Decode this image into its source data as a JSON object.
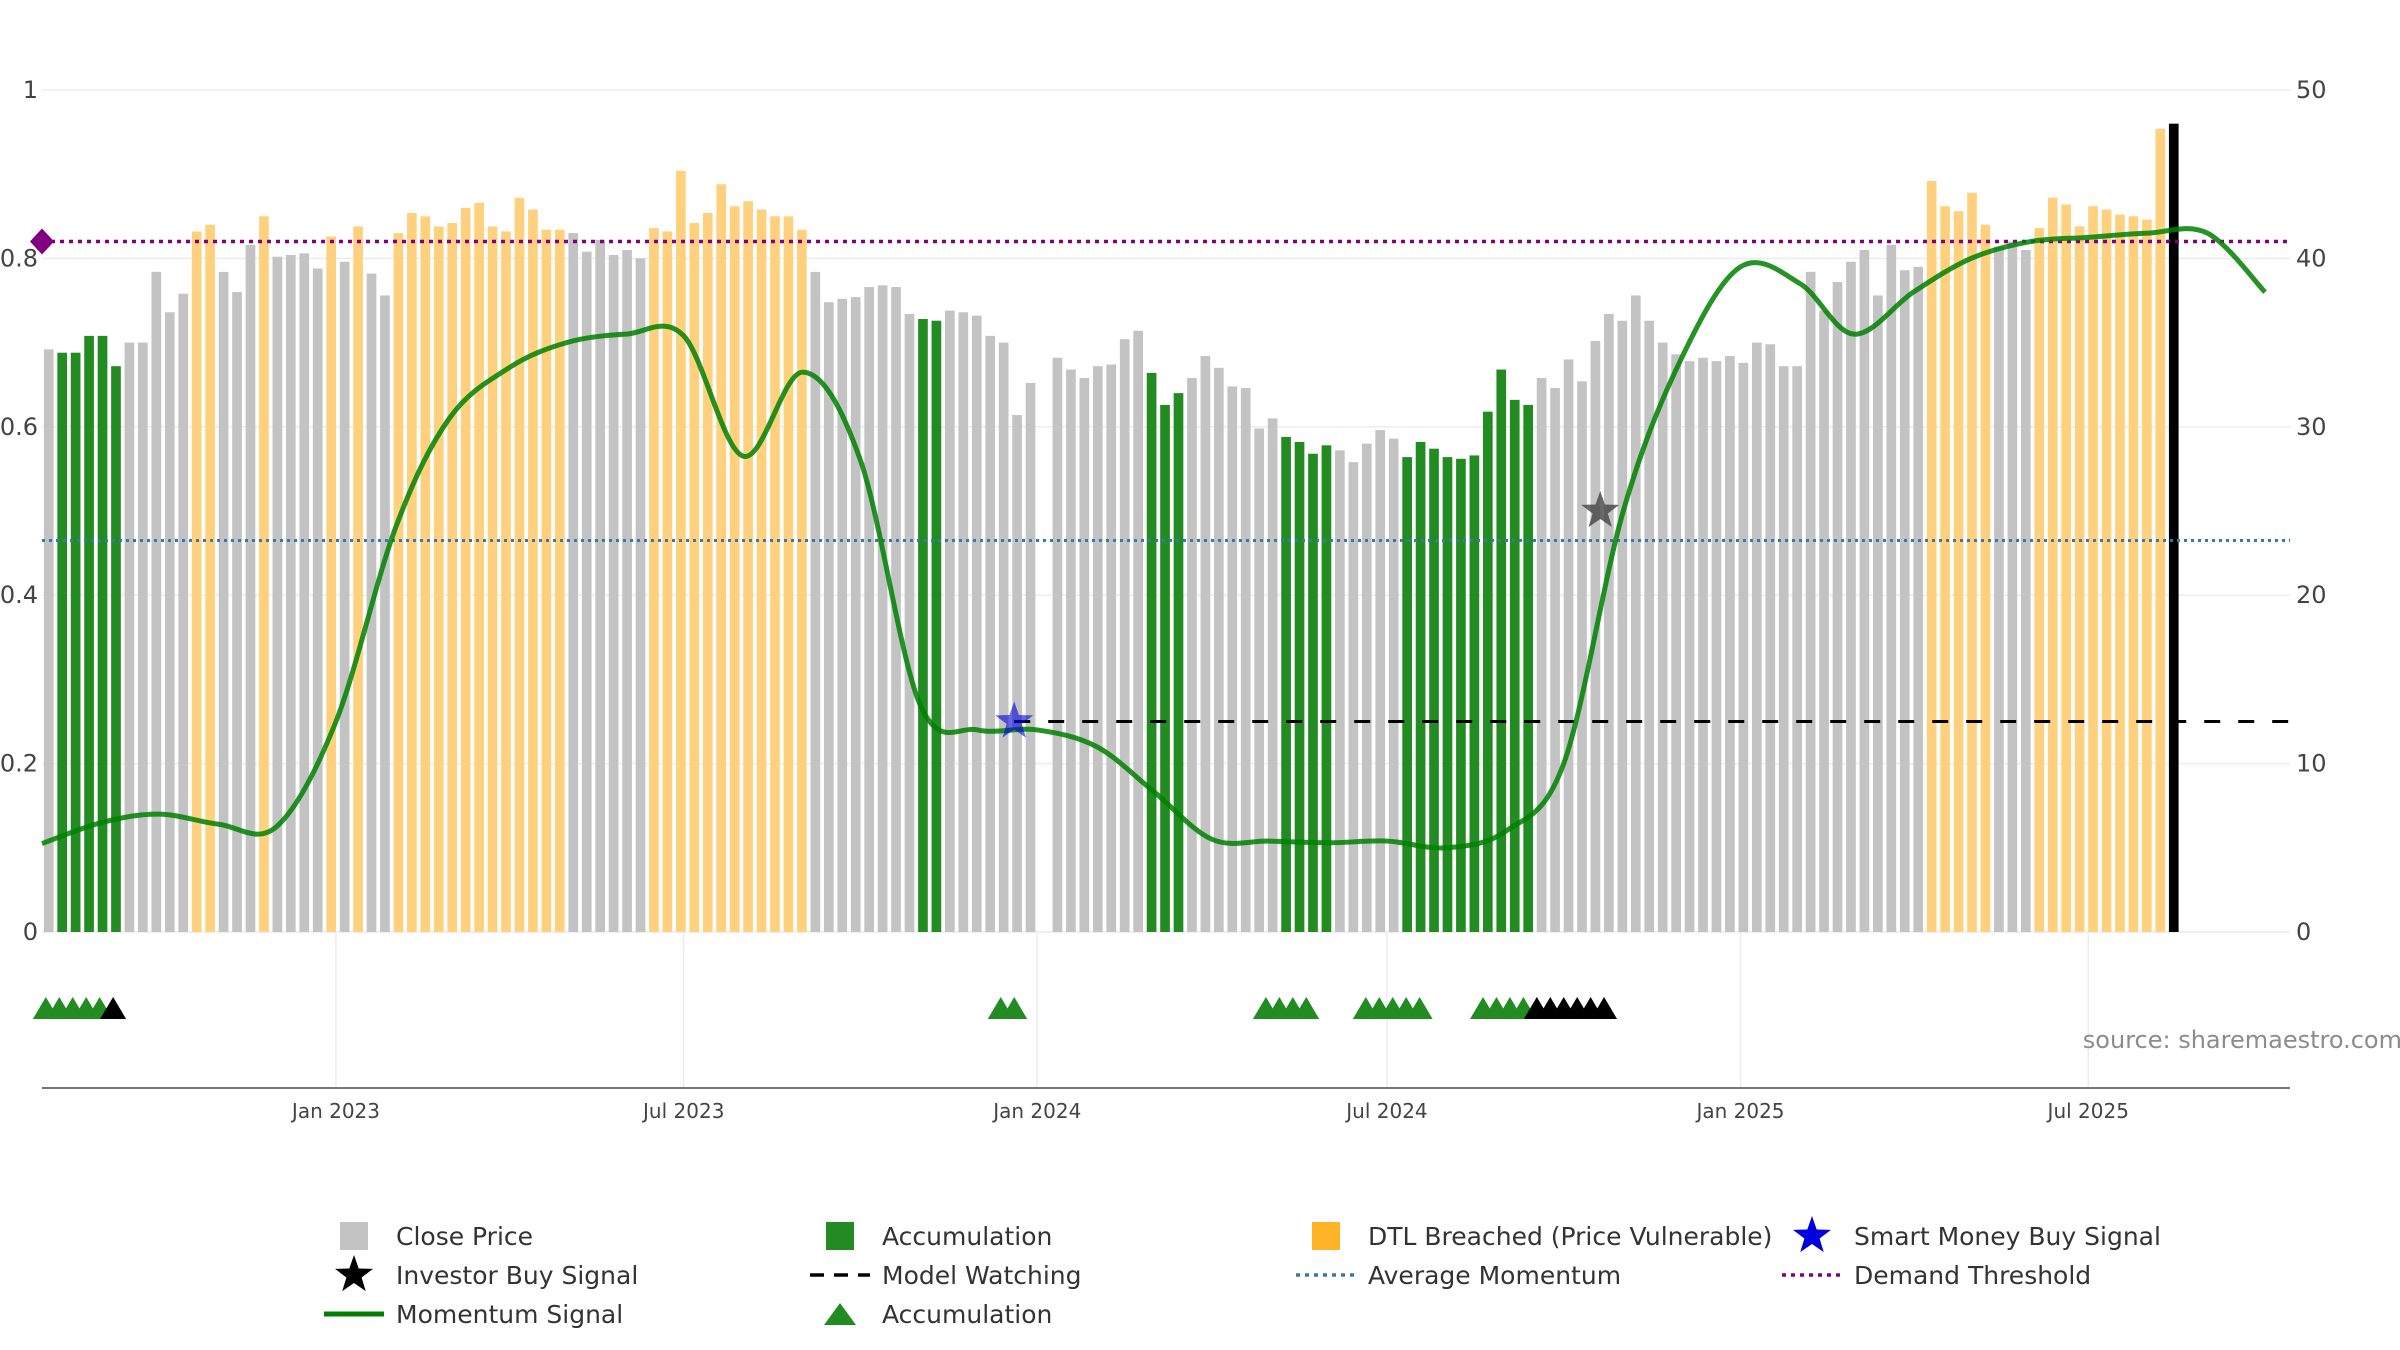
{
  "chart_data": {
    "type": "bar",
    "title": "",
    "source_label": "source: sharemaestro.com",
    "y_left": {
      "ticks": [
        0,
        0.2,
        0.4,
        0.6,
        0.8,
        1
      ],
      "tick_labels": [
        "0",
        "0.2",
        "0.4",
        "0.6",
        "0.8",
        "1"
      ],
      "range": [
        0,
        1
      ]
    },
    "y_right": {
      "ticks": [
        0,
        10,
        20,
        30,
        40,
        50
      ],
      "tick_labels": [
        "0",
        "10",
        "20",
        "30",
        "40",
        "50"
      ],
      "range": [
        0,
        50
      ]
    },
    "x": {
      "start": "2022-08-01",
      "end": "2025-10-14",
      "ticks": [
        "2023-01-01",
        "2023-07-01",
        "2024-01-01",
        "2024-07-01",
        "2025-01-01",
        "2025-07-01"
      ],
      "tick_labels": [
        "Jan 2023",
        "Jul 2023",
        "Jan 2024",
        "Jul 2024",
        "Jan 2025",
        "Jul 2025"
      ]
    },
    "bar_week_start": "2022-08-01",
    "bar_interval_days": 7,
    "bar_values": [
      34.6,
      34.4,
      34.4,
      35.4,
      35.4,
      33.6,
      35.0,
      35.0,
      39.2,
      36.8,
      37.9,
      41.6,
      42.0,
      39.2,
      38.0,
      40.8,
      42.5,
      40.1,
      40.2,
      40.3,
      39.4,
      41.3,
      39.8,
      41.9,
      39.1,
      37.8,
      41.5,
      42.7,
      42.5,
      41.9,
      42.1,
      43.0,
      43.3,
      41.9,
      41.6,
      43.6,
      42.9,
      41.7,
      41.7,
      41.5,
      40.4,
      41.1,
      40.2,
      40.5,
      40.0,
      41.8,
      41.6,
      45.2,
      42.1,
      42.7,
      44.4,
      43.1,
      43.4,
      42.9,
      42.5,
      42.5,
      41.7,
      39.2,
      37.4,
      37.6,
      37.7,
      38.3,
      38.4,
      38.3,
      36.7,
      36.4,
      36.3,
      36.9,
      36.8,
      36.6,
      35.4,
      35.0,
      30.7,
      32.6,
      0,
      34.1,
      33.4,
      32.9,
      33.6,
      33.7,
      35.2,
      35.7,
      33.2,
      31.3,
      32.0,
      32.9,
      34.2,
      33.5,
      32.4,
      32.3,
      29.9,
      30.5,
      29.4,
      29.1,
      28.4,
      28.9,
      28.6,
      27.9,
      29.0,
      29.8,
      29.3,
      28.2,
      29.1,
      28.7,
      28.2,
      28.1,
      28.3,
      30.9,
      33.4,
      31.6,
      31.3,
      32.9,
      32.3,
      34.0,
      32.7,
      35.1,
      36.7,
      36.3,
      37.8,
      36.3,
      35.0,
      34.3,
      33.9,
      34.1,
      33.9,
      34.2,
      33.8,
      35.0,
      34.9,
      33.6,
      33.6,
      39.2,
      36.9,
      38.6,
      39.8,
      40.5,
      37.8,
      40.8,
      39.3,
      39.5,
      44.6,
      43.1,
      42.8,
      43.9,
      42.0,
      40.7,
      41.0,
      40.5,
      41.8,
      43.6,
      43.2,
      41.9,
      43.1,
      42.9,
      42.6,
      42.5,
      42.3,
      47.7,
      48.0
    ],
    "bar_categories": [
      "C",
      "A",
      "A",
      "A",
      "A",
      "A",
      "C",
      "C",
      "C",
      "C",
      "C",
      "D",
      "D",
      "C",
      "C",
      "C",
      "D",
      "C",
      "C",
      "C",
      "C",
      "D",
      "C",
      "D",
      "C",
      "C",
      "D",
      "D",
      "D",
      "D",
      "D",
      "D",
      "D",
      "D",
      "D",
      "D",
      "D",
      "D",
      "D",
      "C",
      "C",
      "C",
      "C",
      "C",
      "C",
      "D",
      "D",
      "D",
      "D",
      "D",
      "D",
      "D",
      "D",
      "D",
      "D",
      "D",
      "D",
      "C",
      "C",
      "C",
      "C",
      "C",
      "C",
      "C",
      "C",
      "A",
      "A",
      "C",
      "C",
      "C",
      "C",
      "C",
      "C",
      "C",
      "C",
      "C",
      "C",
      "C",
      "C",
      "C",
      "C",
      "C",
      "A",
      "A",
      "A",
      "C",
      "C",
      "C",
      "C",
      "C",
      "C",
      "C",
      "A",
      "A",
      "A",
      "A",
      "C",
      "C",
      "C",
      "C",
      "C",
      "A",
      "A",
      "A",
      "A",
      "A",
      "A",
      "A",
      "A",
      "A",
      "A",
      "C",
      "C",
      "C",
      "C",
      "C",
      "C",
      "C",
      "C",
      "C",
      "C",
      "C",
      "C",
      "C",
      "C",
      "C",
      "C",
      "C",
      "C",
      "C",
      "C",
      "C",
      "C",
      "C",
      "C",
      "C",
      "C",
      "C",
      "C",
      "C",
      "D",
      "D",
      "D",
      "D",
      "D",
      "C",
      "C",
      "C",
      "D",
      "D",
      "D",
      "D",
      "D",
      "D",
      "D",
      "D",
      "D",
      "D"
    ],
    "momentum_signal": {
      "x": [
        "2022-08-01",
        "2022-09-01",
        "2022-10-01",
        "2022-11-01",
        "2022-12-01",
        "2023-01-01",
        "2023-02-01",
        "2023-03-01",
        "2023-04-01",
        "2023-05-01",
        "2023-06-01",
        "2023-07-01",
        "2023-08-01",
        "2023-09-01",
        "2023-10-01",
        "2023-11-01",
        "2023-12-01",
        "2024-01-01",
        "2024-02-01",
        "2024-03-01",
        "2024-04-01",
        "2024-05-01",
        "2024-06-01",
        "2024-07-01",
        "2024-08-01",
        "2024-09-01",
        "2024-10-01",
        "2024-11-01",
        "2024-12-01",
        "2025-01-01",
        "2025-02-01",
        "2025-03-01",
        "2025-04-01",
        "2025-05-01",
        "2025-06-01",
        "2025-07-01",
        "2025-08-01",
        "2025-09-01",
        "2025-10-01"
      ],
      "y": [
        0.105,
        0.13,
        0.14,
        0.128,
        0.125,
        0.25,
        0.48,
        0.61,
        0.67,
        0.7,
        0.71,
        0.708,
        0.565,
        0.665,
        0.56,
        0.27,
        0.24,
        0.24,
        0.22,
        0.168,
        0.11,
        0.108,
        0.106,
        0.108,
        0.1,
        0.12,
        0.2,
        0.5,
        0.68,
        0.79,
        0.77,
        0.71,
        0.76,
        0.8,
        0.82,
        0.825,
        0.83,
        0.83,
        0.76
      ]
    },
    "average_momentum": 0.465,
    "demand_threshold": 0.82,
    "model_watching": {
      "level": 0.25,
      "from": "2023-12-20",
      "to": "2025-10-14"
    },
    "smart_money_buy_signal": {
      "x": "2023-12-20",
      "y": 0.25
    },
    "investor_buy_signal": {
      "x": "2024-10-20",
      "y": 0.5
    },
    "accumulation_markers": {
      "green": [
        "2022-08-03",
        "2022-08-10",
        "2022-08-17",
        "2022-08-24",
        "2022-08-31",
        "2023-12-13",
        "2023-12-20",
        "2024-04-29",
        "2024-05-06",
        "2024-05-13",
        "2024-05-20",
        "2024-06-20",
        "2024-06-27",
        "2024-07-04",
        "2024-07-11",
        "2024-07-18",
        "2024-08-20",
        "2024-08-27",
        "2024-09-03",
        "2024-09-10"
      ],
      "black": [
        "2022-09-07",
        "2024-09-17",
        "2024-09-24",
        "2024-10-01",
        "2024-10-08",
        "2024-10-15",
        "2024-10-22"
      ]
    },
    "colors": {
      "close_price": "#c3c3c3",
      "accumulation": "#228b22",
      "dtl_breached": "#ffd17f",
      "momentum": "#008000",
      "average_momentum": "#3b78a8",
      "demand_threshold": "#800080",
      "smart_money": "#0000dd",
      "investor": "#000000",
      "model_watching": "#000000"
    },
    "legend": [
      {
        "label": "Close Price",
        "symbol": "square",
        "color": "#c3c3c3"
      },
      {
        "label": "Accumulation",
        "symbol": "square",
        "color": "#228b22"
      },
      {
        "label": "DTL Breached (Price Vulnerable)",
        "symbol": "square",
        "color": "#ffb326"
      },
      {
        "label": "Smart Money Buy Signal",
        "symbol": "star",
        "color": "#0000dd"
      },
      {
        "label": "Investor Buy Signal",
        "symbol": "star",
        "color": "#000000"
      },
      {
        "label": "Model Watching",
        "symbol": "dash",
        "color": "#000000"
      },
      {
        "label": "Average Momentum",
        "symbol": "dot",
        "color": "#3b78a8"
      },
      {
        "label": "Demand Threshold",
        "symbol": "dot",
        "color": "#800080"
      },
      {
        "label": "Momentum Signal",
        "symbol": "line",
        "color": "#008000"
      },
      {
        "label": "Accumulation",
        "symbol": "triangle",
        "color": "#228b22"
      }
    ],
    "legend_position": "bottom",
    "grid": true
  }
}
